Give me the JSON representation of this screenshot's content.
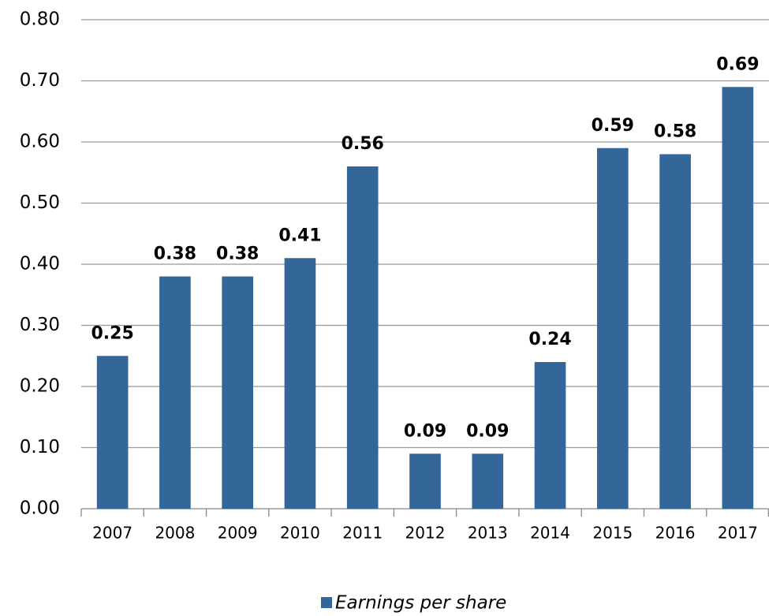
{
  "chart_data": {
    "type": "bar",
    "categories": [
      "2007",
      "2008",
      "2009",
      "2010",
      "2011",
      "2012",
      "2013",
      "2014",
      "2015",
      "2016",
      "2017"
    ],
    "series": [
      {
        "name": "Earnings per share",
        "color": "#336699",
        "values": [
          0.25,
          0.38,
          0.38,
          0.41,
          0.56,
          0.09,
          0.09,
          0.24,
          0.59,
          0.58,
          0.69
        ]
      }
    ],
    "ylim": [
      0,
      0.8
    ],
    "yticks": [
      {
        "value": 0,
        "label": "0.00"
      },
      {
        "value": 0.1,
        "label": "0.10"
      },
      {
        "value": 0.2,
        "label": "0.20"
      },
      {
        "value": 0.3,
        "label": "0.30"
      },
      {
        "value": 0.4,
        "label": "0.40"
      },
      {
        "value": 0.5,
        "label": "0.50"
      },
      {
        "value": 0.6,
        "label": "0.60"
      },
      {
        "value": 0.7,
        "label": "0.70"
      },
      {
        "value": 0.8,
        "label": "0.80"
      }
    ],
    "grid": true,
    "legend": "bottom"
  }
}
